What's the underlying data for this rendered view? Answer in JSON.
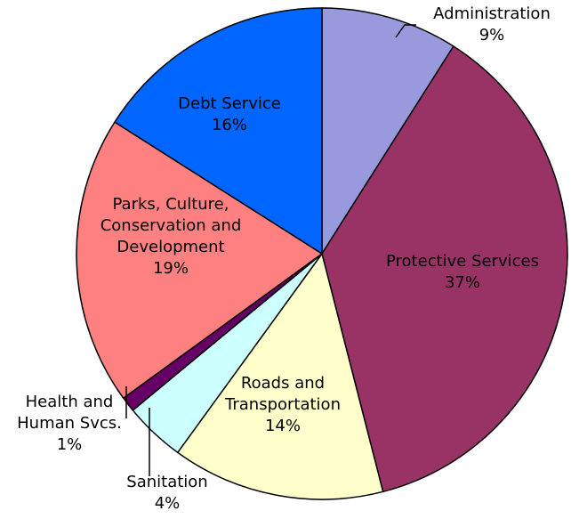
{
  "chart_data": {
    "type": "pie",
    "title": "",
    "slices": [
      {
        "name": "Administration",
        "percent_label": "9%",
        "value": 9,
        "color": "#9999dd"
      },
      {
        "name": "Protective Services",
        "percent_label": "37%",
        "value": 37,
        "color": "#993366"
      },
      {
        "name": "Roads and Transportation",
        "percent_label": "14%",
        "value": 14,
        "color": "#ffffcc"
      },
      {
        "name": "Sanitation",
        "percent_label": "4%",
        "value": 4,
        "color": "#ccffff"
      },
      {
        "name": "Health and Human Svcs.",
        "percent_label": "1%",
        "value": 1,
        "color": "#660066"
      },
      {
        "name": "Parks, Culture, Conservation and Development",
        "percent_label": "19%",
        "value": 19,
        "color": "#ff8080"
      },
      {
        "name": "Debt Service",
        "percent_label": "16%",
        "value": 16,
        "color": "#0066ff"
      }
    ],
    "label_lines": [
      [
        "Administration",
        "9%"
      ],
      [
        "Protective Services",
        "37%"
      ],
      [
        "Roads and",
        "Transportation",
        "14%"
      ],
      [
        "Sanitation",
        "4%"
      ],
      [
        "Health and",
        "Human Svcs.",
        "1%"
      ],
      [
        "Parks, Culture,",
        "Conservation and",
        "Development",
        "19%"
      ],
      [
        "Debt Service",
        "16%"
      ]
    ],
    "legend": "none"
  }
}
